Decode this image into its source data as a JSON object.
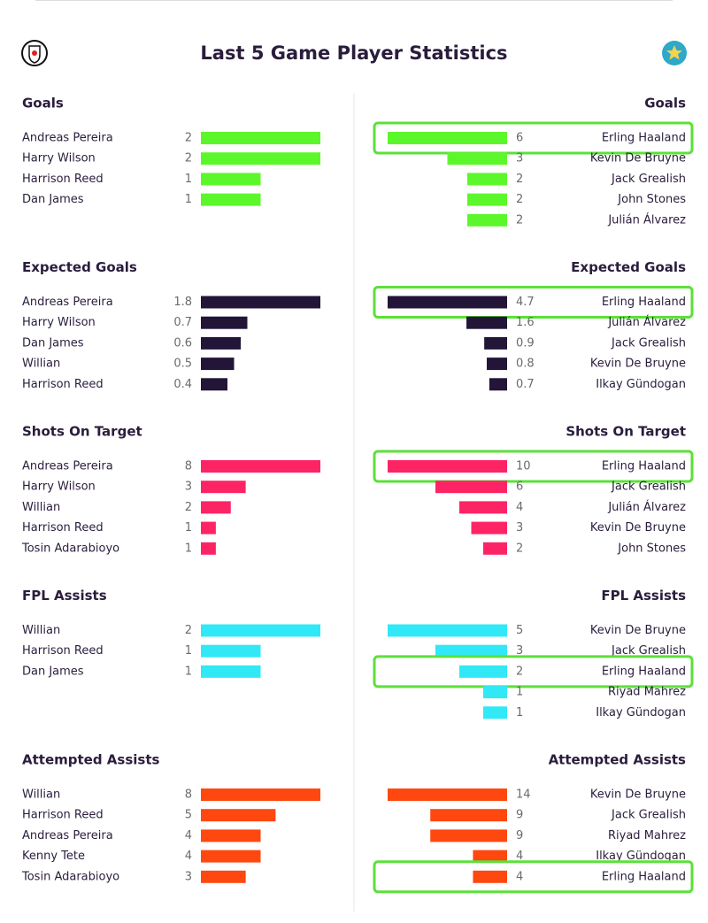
{
  "title": "Last 5 Game Player Statistics",
  "sections": [
    {
      "title": "Goals",
      "color": "#5cf72a",
      "left": [
        {
          "name": "Andreas Pereira",
          "value": 2
        },
        {
          "name": "Harry Wilson",
          "value": 2
        },
        {
          "name": "Harrison Reed",
          "value": 1
        },
        {
          "name": "Dan James",
          "value": 1
        }
      ],
      "right": [
        {
          "name": "Erling Haaland",
          "value": 6,
          "highlighted": true
        },
        {
          "name": "Kevin De Bruyne",
          "value": 3
        },
        {
          "name": "Jack Grealish",
          "value": 2
        },
        {
          "name": "John Stones",
          "value": 2
        },
        {
          "name": "Julián Álvarez",
          "value": 2
        }
      ]
    },
    {
      "title": "Expected Goals",
      "color": "#221537",
      "left": [
        {
          "name": "Andreas Pereira",
          "value": 1.8
        },
        {
          "name": "Harry Wilson",
          "value": 0.7
        },
        {
          "name": "Dan James",
          "value": 0.6
        },
        {
          "name": "Willian",
          "value": 0.5
        },
        {
          "name": "Harrison Reed",
          "value": 0.4
        }
      ],
      "right": [
        {
          "name": "Erling Haaland",
          "value": 4.7,
          "highlighted": true
        },
        {
          "name": "Julián Álvarez",
          "value": 1.6
        },
        {
          "name": "Jack Grealish",
          "value": 0.9
        },
        {
          "name": "Kevin De Bruyne",
          "value": 0.8
        },
        {
          "name": "Ilkay Gündogan",
          "value": 0.7
        }
      ]
    },
    {
      "title": "Shots On Target",
      "color": "#fd2466",
      "left": [
        {
          "name": "Andreas Pereira",
          "value": 8
        },
        {
          "name": "Harry Wilson",
          "value": 3
        },
        {
          "name": "Willian",
          "value": 2
        },
        {
          "name": "Harrison Reed",
          "value": 1
        },
        {
          "name": "Tosin Adarabioyo",
          "value": 1
        }
      ],
      "right": [
        {
          "name": "Erling Haaland",
          "value": 10,
          "highlighted": true
        },
        {
          "name": "Jack Grealish",
          "value": 6
        },
        {
          "name": "Julián Álvarez",
          "value": 4
        },
        {
          "name": "Kevin De Bruyne",
          "value": 3
        },
        {
          "name": "John Stones",
          "value": 2
        }
      ]
    },
    {
      "title": "FPL Assists",
      "color": "#31e8f6",
      "left": [
        {
          "name": "Willian",
          "value": 2
        },
        {
          "name": "Harrison Reed",
          "value": 1
        },
        {
          "name": "Dan James",
          "value": 1
        }
      ],
      "right": [
        {
          "name": "Kevin De Bruyne",
          "value": 5
        },
        {
          "name": "Jack Grealish",
          "value": 3
        },
        {
          "name": "Erling Haaland",
          "value": 2,
          "highlighted": true
        },
        {
          "name": "Riyad Mahrez",
          "value": 1
        },
        {
          "name": "Ilkay Gündogan",
          "value": 1
        }
      ]
    },
    {
      "title": "Attempted Assists",
      "color": "#fe4810",
      "left": [
        {
          "name": "Willian",
          "value": 8
        },
        {
          "name": "Harrison Reed",
          "value": 5
        },
        {
          "name": "Andreas Pereira",
          "value": 4
        },
        {
          "name": "Kenny Tete",
          "value": 4
        },
        {
          "name": "Tosin Adarabioyo",
          "value": 3
        }
      ],
      "right": [
        {
          "name": "Kevin De Bruyne",
          "value": 14
        },
        {
          "name": "Jack Grealish",
          "value": 9
        },
        {
          "name": "Riyad Mahrez",
          "value": 9
        },
        {
          "name": "Ilkay Gündogan",
          "value": 4
        },
        {
          "name": "Erling Haaland",
          "value": 4,
          "highlighted": true
        }
      ]
    }
  ]
}
